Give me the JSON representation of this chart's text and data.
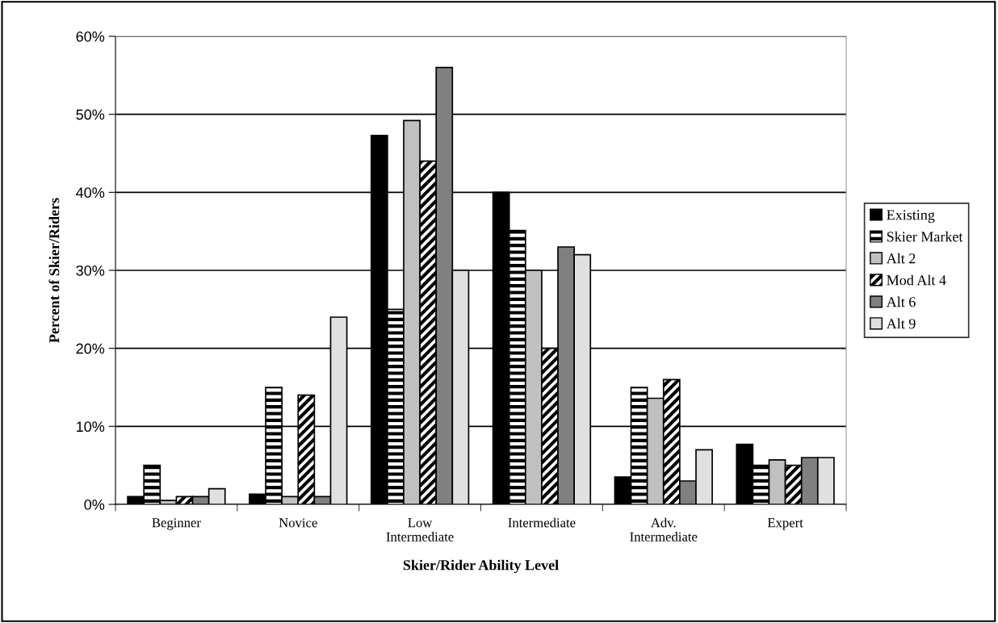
{
  "chart_data": {
    "type": "bar",
    "xlabel": "Skier/Rider Ability Level",
    "ylabel": "Percent of Skier/Riders",
    "categories": [
      "Beginner",
      "Novice",
      "Low\nIntermediate",
      "Intermediate",
      "Adv.\nIntermediate",
      "Expert"
    ],
    "series": [
      {
        "name": "Existing",
        "color": "#000000",
        "values": [
          1,
          1.3,
          47.3,
          40,
          3.5,
          7.7
        ]
      },
      {
        "name": "Skier Market",
        "color": "#000000",
        "values": [
          5,
          15,
          25,
          35.1,
          15,
          5
        ]
      },
      {
        "name": "Alt 2",
        "color": "#c0c0c0",
        "values": [
          0.5,
          1,
          49.2,
          30,
          13.6,
          5.7
        ]
      },
      {
        "name": "Mod Alt 4",
        "color": "#000000",
        "values": [
          1,
          14,
          44,
          20,
          16,
          5
        ]
      },
      {
        "name": "Alt 6",
        "color": "#808080",
        "values": [
          1,
          1,
          56,
          33,
          3,
          6
        ]
      },
      {
        "name": "Alt 9",
        "color": "#e0e0e0",
        "values": [
          2,
          24,
          30,
          32,
          7,
          6
        ]
      }
    ],
    "ylim": [
      0,
      60
    ],
    "yticks": [
      {
        "value": 0,
        "label": "0%"
      },
      {
        "value": 10,
        "label": "10%"
      },
      {
        "value": 20,
        "label": "20%"
      },
      {
        "value": 30,
        "label": "30%"
      },
      {
        "value": 40,
        "label": "40%"
      },
      {
        "value": 50,
        "label": "50%"
      },
      {
        "value": 60,
        "label": "60%"
      }
    ],
    "grid": "y",
    "legend": "right"
  }
}
